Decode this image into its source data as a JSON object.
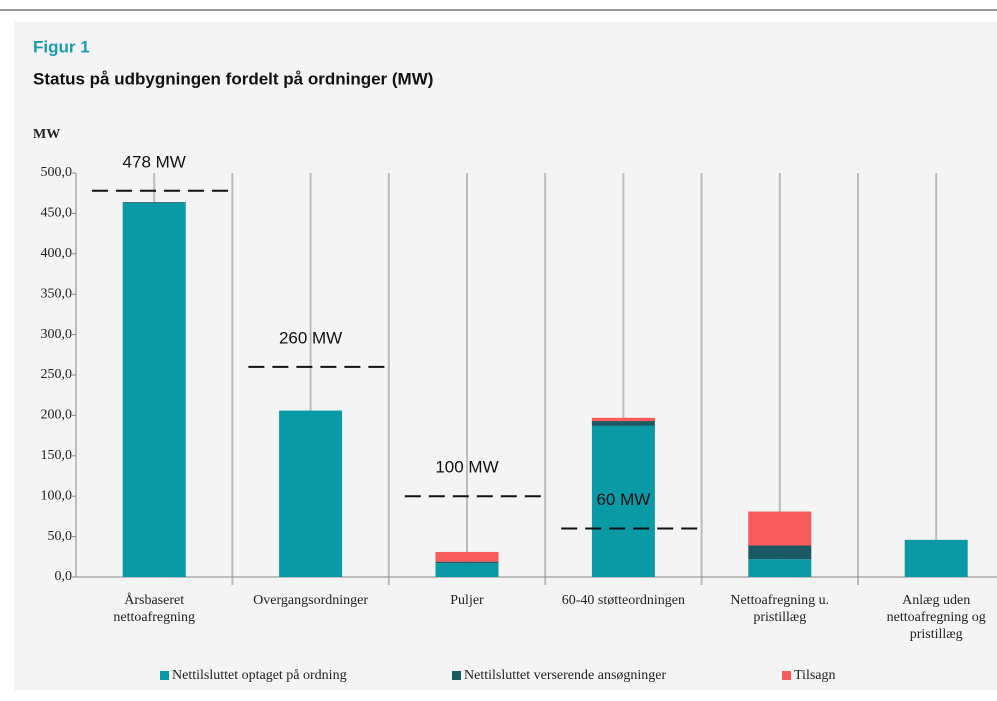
{
  "chart_data": {
    "type": "stacked_bar",
    "supertitle": "Figur 1",
    "title": "Status på udbygningen fordelt på ordninger (MW)",
    "ylabel": "MW",
    "categories": [
      "Årsbaseret\nnettoafregning",
      "Overgangsordninger",
      "Puljer",
      "60-40 støtteordningen",
      "Nettoafregning u.\npristillæg",
      "Anlæg uden\nnettoafregning og\npristillæg"
    ],
    "series": [
      {
        "name": "Nettilsluttet optaget på ordning",
        "color": "#0a9aa6",
        "values": [
          463,
          206,
          17,
          187,
          22,
          46
        ]
      },
      {
        "name": "Nettilsluttet verserende ansøgninger",
        "color": "#1b5a62",
        "values": [
          1,
          0,
          2,
          6,
          17,
          0
        ]
      },
      {
        "name": "Tilsagn",
        "color": "#f75b5b",
        "values": [
          0,
          0,
          12,
          4,
          42,
          0
        ]
      }
    ],
    "targets": {
      "values": [
        478,
        260,
        100,
        60,
        null,
        null
      ],
      "value_labels": [
        "478 MW",
        "260 MW",
        "100 MW",
        "60 MW",
        null,
        null
      ]
    },
    "ylim": [
      0,
      500
    ],
    "yticks": [
      {
        "value": 0,
        "label": "0,0"
      },
      {
        "value": 50,
        "label": "50,0"
      },
      {
        "value": 100,
        "label": "100,0"
      },
      {
        "value": 150,
        "label": "150,0"
      },
      {
        "value": 200,
        "label": "200,0"
      },
      {
        "value": 250,
        "label": "250,0"
      },
      {
        "value": 300,
        "label": "300,0"
      },
      {
        "value": 350,
        "label": "350,0"
      },
      {
        "value": 400,
        "label": "400,0"
      },
      {
        "value": 450,
        "label": "450,0"
      },
      {
        "value": 500,
        "label": "500,0"
      }
    ],
    "grid": true,
    "legend": "bottom"
  }
}
